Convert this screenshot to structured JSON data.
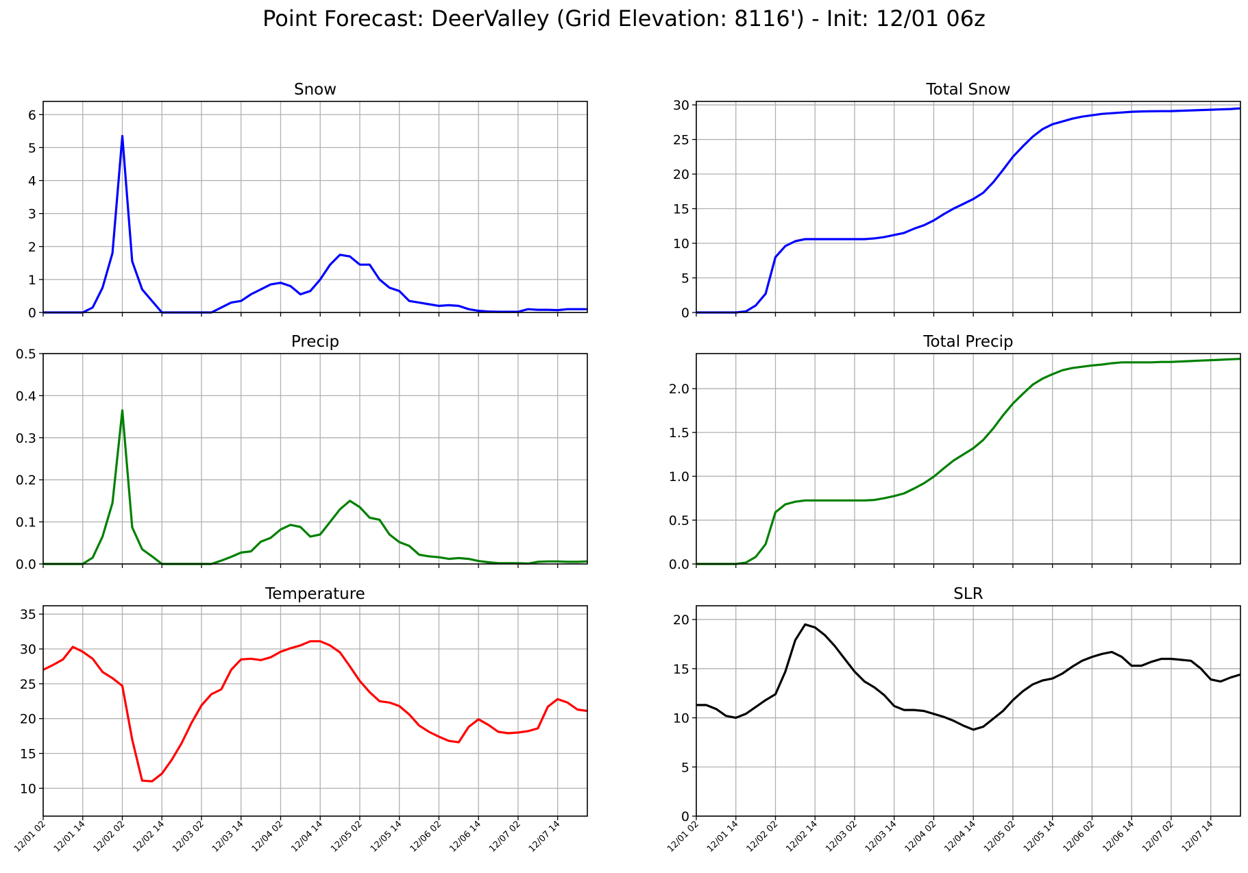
{
  "suptitle": "Point Forecast: DeerValley (Grid Elevation: 8116') - Init: 12/01 06z",
  "time_axis": {
    "x_range": [
      "12/01 02",
      "12/07 23"
    ],
    "x_ticks": [
      "12/01 02",
      "12/01 14",
      "12/02 02",
      "12/02 14",
      "12/03 02",
      "12/03 14",
      "12/04 02",
      "12/04 14",
      "12/05 02",
      "12/05 14",
      "12/06 02",
      "12/06 14",
      "12/07 02",
      "12/07 14"
    ]
  },
  "colors": {
    "snow": "#0000ff",
    "precip": "#008000",
    "temperature": "#ff0000",
    "slr": "#000000",
    "grid": "#b0b0b0"
  },
  "chart_data": [
    {
      "id": "snow",
      "type": "line",
      "title": "Snow",
      "color": "#0000ff",
      "ylim": [
        0,
        6.4
      ],
      "yticks": [
        0,
        1,
        2,
        3,
        4,
        5,
        6
      ],
      "grid": true,
      "show_x_labels": false,
      "x": [
        "12/01 02",
        "12/01 05",
        "12/01 08",
        "12/01 11",
        "12/01 14",
        "12/01 17",
        "12/01 20",
        "12/01 23",
        "12/02 02",
        "12/02 05",
        "12/02 08",
        "12/02 11",
        "12/02 14",
        "12/02 17",
        "12/02 20",
        "12/02 23",
        "12/03 02",
        "12/03 05",
        "12/03 08",
        "12/03 11",
        "12/03 14",
        "12/03 17",
        "12/03 20",
        "12/03 23",
        "12/04 02",
        "12/04 05",
        "12/04 08",
        "12/04 11",
        "12/04 14",
        "12/04 17",
        "12/04 20",
        "12/04 23",
        "12/05 02",
        "12/05 05",
        "12/05 08",
        "12/05 11",
        "12/05 14",
        "12/05 17",
        "12/05 20",
        "12/05 23",
        "12/06 02",
        "12/06 05",
        "12/06 08",
        "12/06 11",
        "12/06 14",
        "12/06 17",
        "12/06 20",
        "12/06 23",
        "12/07 02",
        "12/07 05",
        "12/07 08",
        "12/07 11",
        "12/07 14",
        "12/07 17",
        "12/07 20",
        "12/07 23"
      ],
      "values": [
        0,
        0,
        0,
        0,
        0,
        0.15,
        0.75,
        1.8,
        5.35,
        1.55,
        0.7,
        0.35,
        0,
        0,
        0,
        0,
        0,
        0,
        0.15,
        0.3,
        0.35,
        0.55,
        0.7,
        0.85,
        0.9,
        0.8,
        0.55,
        0.65,
        1.0,
        1.45,
        1.75,
        1.7,
        1.45,
        1.45,
        1.0,
        0.75,
        0.65,
        0.35,
        0.3,
        0.25,
        0.2,
        0.22,
        0.2,
        0.1,
        0.05,
        0.03,
        0.02,
        0.02,
        0.02,
        0.1,
        0.08,
        0.08,
        0.07,
        0.1,
        0.1,
        0.1
      ]
    },
    {
      "id": "total-snow",
      "type": "line",
      "title": "Total Snow",
      "color": "#0000ff",
      "ylim": [
        0,
        30.5
      ],
      "yticks": [
        0,
        5,
        10,
        15,
        20,
        25,
        30
      ],
      "grid": true,
      "show_x_labels": false,
      "x": [
        "12/01 02",
        "12/01 05",
        "12/01 08",
        "12/01 11",
        "12/01 14",
        "12/01 17",
        "12/01 20",
        "12/01 23",
        "12/02 02",
        "12/02 05",
        "12/02 08",
        "12/02 11",
        "12/02 14",
        "12/02 17",
        "12/02 20",
        "12/02 23",
        "12/03 02",
        "12/03 05",
        "12/03 08",
        "12/03 11",
        "12/03 14",
        "12/03 17",
        "12/03 20",
        "12/03 23",
        "12/04 02",
        "12/04 05",
        "12/04 08",
        "12/04 11",
        "12/04 14",
        "12/04 17",
        "12/04 20",
        "12/04 23",
        "12/05 02",
        "12/05 05",
        "12/05 08",
        "12/05 11",
        "12/05 14",
        "12/05 17",
        "12/05 20",
        "12/05 23",
        "12/06 02",
        "12/06 05",
        "12/06 08",
        "12/06 11",
        "12/06 14",
        "12/06 17",
        "12/06 20",
        "12/06 23",
        "12/07 02",
        "12/07 05",
        "12/07 08",
        "12/07 11",
        "12/07 14",
        "12/07 17",
        "12/07 20",
        "12/07 23"
      ],
      "values": [
        0,
        0,
        0,
        0,
        0,
        0.15,
        1.0,
        2.7,
        8.0,
        9.6,
        10.3,
        10.6,
        10.6,
        10.6,
        10.6,
        10.6,
        10.6,
        10.6,
        10.7,
        10.9,
        11.2,
        11.5,
        12.1,
        12.6,
        13.3,
        14.2,
        15.0,
        15.7,
        16.4,
        17.3,
        18.8,
        20.6,
        22.5,
        24.0,
        25.4,
        26.5,
        27.2,
        27.6,
        28.0,
        28.3,
        28.5,
        28.7,
        28.8,
        28.9,
        29.0,
        29.05,
        29.07,
        29.09,
        29.1,
        29.15,
        29.2,
        29.25,
        29.3,
        29.35,
        29.4,
        29.5
      ]
    },
    {
      "id": "precip",
      "type": "line",
      "title": "Precip",
      "color": "#008000",
      "ylim": [
        0,
        0.5
      ],
      "yticks": [
        0.0,
        0.1,
        0.2,
        0.3,
        0.4,
        0.5
      ],
      "grid": true,
      "show_x_labels": false,
      "x": [
        "12/01 02",
        "12/01 05",
        "12/01 08",
        "12/01 11",
        "12/01 14",
        "12/01 17",
        "12/01 20",
        "12/01 23",
        "12/02 02",
        "12/02 05",
        "12/02 08",
        "12/02 11",
        "12/02 14",
        "12/02 17",
        "12/02 20",
        "12/02 23",
        "12/03 02",
        "12/03 05",
        "12/03 08",
        "12/03 11",
        "12/03 14",
        "12/03 17",
        "12/03 20",
        "12/03 23",
        "12/04 02",
        "12/04 05",
        "12/04 08",
        "12/04 11",
        "12/04 14",
        "12/04 17",
        "12/04 20",
        "12/04 23",
        "12/05 02",
        "12/05 05",
        "12/05 08",
        "12/05 11",
        "12/05 14",
        "12/05 17",
        "12/05 20",
        "12/05 23",
        "12/06 02",
        "12/06 05",
        "12/06 08",
        "12/06 11",
        "12/06 14",
        "12/06 17",
        "12/06 20",
        "12/06 23",
        "12/07 02",
        "12/07 05",
        "12/07 08",
        "12/07 11",
        "12/07 14",
        "12/07 17",
        "12/07 20",
        "12/07 23"
      ],
      "values": [
        0,
        0,
        0,
        0,
        0,
        0.015,
        0.065,
        0.145,
        0.365,
        0.087,
        0.035,
        0.018,
        0,
        0,
        0,
        0,
        0,
        0,
        0.008,
        0.017,
        0.027,
        0.03,
        0.053,
        0.062,
        0.082,
        0.093,
        0.088,
        0.065,
        0.07,
        0.1,
        0.13,
        0.15,
        0.135,
        0.11,
        0.105,
        0.07,
        0.052,
        0.043,
        0.022,
        0.018,
        0.016,
        0.012,
        0.014,
        0.012,
        0.007,
        0.004,
        0.002,
        0.002,
        0.002,
        0.001,
        0.005,
        0.006,
        0.006,
        0.005,
        0.005,
        0.006
      ]
    },
    {
      "id": "total-precip",
      "type": "line",
      "title": "Total Precip",
      "color": "#008000",
      "ylim": [
        0,
        2.4
      ],
      "yticks": [
        0.0,
        0.5,
        1.0,
        1.5,
        2.0
      ],
      "grid": true,
      "show_x_labels": false,
      "x": [
        "12/01 02",
        "12/01 05",
        "12/01 08",
        "12/01 11",
        "12/01 14",
        "12/01 17",
        "12/01 20",
        "12/01 23",
        "12/02 02",
        "12/02 05",
        "12/02 08",
        "12/02 11",
        "12/02 14",
        "12/02 17",
        "12/02 20",
        "12/02 23",
        "12/03 02",
        "12/03 05",
        "12/03 08",
        "12/03 11",
        "12/03 14",
        "12/03 17",
        "12/03 20",
        "12/03 23",
        "12/04 02",
        "12/04 05",
        "12/04 08",
        "12/04 11",
        "12/04 14",
        "12/04 17",
        "12/04 20",
        "12/04 23",
        "12/05 02",
        "12/05 05",
        "12/05 08",
        "12/05 11",
        "12/05 14",
        "12/05 17",
        "12/05 20",
        "12/05 23",
        "12/06 02",
        "12/06 05",
        "12/06 08",
        "12/06 11",
        "12/06 14",
        "12/06 17",
        "12/06 20",
        "12/06 23",
        "12/07 02",
        "12/07 05",
        "12/07 08",
        "12/07 11",
        "12/07 14",
        "12/07 17",
        "12/07 20",
        "12/07 23"
      ],
      "values": [
        0,
        0,
        0,
        0,
        0,
        0.015,
        0.08,
        0.225,
        0.59,
        0.68,
        0.71,
        0.725,
        0.725,
        0.725,
        0.725,
        0.725,
        0.725,
        0.725,
        0.73,
        0.75,
        0.775,
        0.805,
        0.86,
        0.92,
        0.995,
        1.09,
        1.18,
        1.25,
        1.32,
        1.415,
        1.545,
        1.695,
        1.83,
        1.94,
        2.045,
        2.115,
        2.165,
        2.21,
        2.235,
        2.25,
        2.265,
        2.275,
        2.29,
        2.3,
        2.3,
        2.3,
        2.3,
        2.305,
        2.305,
        2.31,
        2.315,
        2.32,
        2.325,
        2.33,
        2.335,
        2.34
      ]
    },
    {
      "id": "temperature",
      "type": "line",
      "title": "Temperature",
      "color": "#ff0000",
      "ylim": [
        6,
        36.2
      ],
      "yticks": [
        10,
        15,
        20,
        25,
        30,
        35
      ],
      "grid": true,
      "show_x_labels": true,
      "x": [
        "12/01 02",
        "12/01 05",
        "12/01 08",
        "12/01 11",
        "12/01 14",
        "12/01 17",
        "12/01 20",
        "12/01 23",
        "12/02 02",
        "12/02 05",
        "12/02 08",
        "12/02 11",
        "12/02 14",
        "12/02 17",
        "12/02 20",
        "12/02 23",
        "12/03 02",
        "12/03 05",
        "12/03 08",
        "12/03 11",
        "12/03 14",
        "12/03 17",
        "12/03 20",
        "12/03 23",
        "12/04 02",
        "12/04 05",
        "12/04 08",
        "12/04 11",
        "12/04 14",
        "12/04 17",
        "12/04 20",
        "12/04 23",
        "12/05 02",
        "12/05 05",
        "12/05 08",
        "12/05 11",
        "12/05 14",
        "12/05 17",
        "12/05 20",
        "12/05 23",
        "12/06 02",
        "12/06 05",
        "12/06 08",
        "12/06 11",
        "12/06 14",
        "12/06 17",
        "12/06 20",
        "12/06 23",
        "12/07 02",
        "12/07 05",
        "12/07 08",
        "12/07 11",
        "12/07 14",
        "12/07 17",
        "12/07 20",
        "12/07 23"
      ],
      "values": [
        27.0,
        27.7,
        28.5,
        30.3,
        29.6,
        28.6,
        26.7,
        25.8,
        24.7,
        17.0,
        11.1,
        11.0,
        12.1,
        14.1,
        16.5,
        19.4,
        21.9,
        23.5,
        24.2,
        27.0,
        28.5,
        28.6,
        28.4,
        28.8,
        29.6,
        30.1,
        30.5,
        31.1,
        31.1,
        30.5,
        29.5,
        27.5,
        25.4,
        23.8,
        22.5,
        22.3,
        21.8,
        20.6,
        19.0,
        18.1,
        17.4,
        16.8,
        16.6,
        18.8,
        19.9,
        19.1,
        18.1,
        17.9,
        18.0,
        18.2,
        18.6,
        21.7,
        22.8,
        22.3,
        21.3,
        21.1
      ]
    },
    {
      "id": "slr",
      "type": "line",
      "title": "SLR",
      "color": "#000000",
      "ylim": [
        0,
        21.4
      ],
      "yticks": [
        0,
        5,
        10,
        15,
        20
      ],
      "grid": true,
      "show_x_labels": true,
      "x": [
        "12/01 02",
        "12/01 05",
        "12/01 08",
        "12/01 11",
        "12/01 14",
        "12/01 17",
        "12/01 20",
        "12/01 23",
        "12/02 02",
        "12/02 05",
        "12/02 08",
        "12/02 11",
        "12/02 14",
        "12/02 17",
        "12/02 20",
        "12/02 23",
        "12/03 02",
        "12/03 05",
        "12/03 08",
        "12/03 11",
        "12/03 14",
        "12/03 17",
        "12/03 20",
        "12/03 23",
        "12/04 02",
        "12/04 05",
        "12/04 08",
        "12/04 11",
        "12/04 14",
        "12/04 17",
        "12/04 20",
        "12/04 23",
        "12/05 02",
        "12/05 05",
        "12/05 08",
        "12/05 11",
        "12/05 14",
        "12/05 17",
        "12/05 20",
        "12/05 23",
        "12/06 02",
        "12/06 05",
        "12/06 08",
        "12/06 11",
        "12/06 14",
        "12/06 17",
        "12/06 20",
        "12/06 23",
        "12/07 02",
        "12/07 05",
        "12/07 08",
        "12/07 11",
        "12/07 14",
        "12/07 17",
        "12/07 20",
        "12/07 23"
      ],
      "values": [
        11.3,
        11.3,
        10.9,
        10.2,
        10.0,
        10.4,
        11.1,
        11.8,
        12.4,
        14.7,
        17.9,
        19.5,
        19.2,
        18.4,
        17.3,
        16.0,
        14.7,
        13.7,
        13.1,
        12.3,
        11.2,
        10.8,
        10.8,
        10.7,
        10.4,
        10.1,
        9.7,
        9.2,
        8.8,
        9.1,
        9.9,
        10.7,
        11.8,
        12.7,
        13.4,
        13.8,
        14.0,
        14.5,
        15.2,
        15.8,
        16.2,
        16.5,
        16.7,
        16.2,
        15.3,
        15.3,
        15.7,
        16.0,
        16.0,
        15.9,
        15.8,
        15.0,
        13.9,
        13.7,
        14.1,
        14.4
      ]
    }
  ]
}
